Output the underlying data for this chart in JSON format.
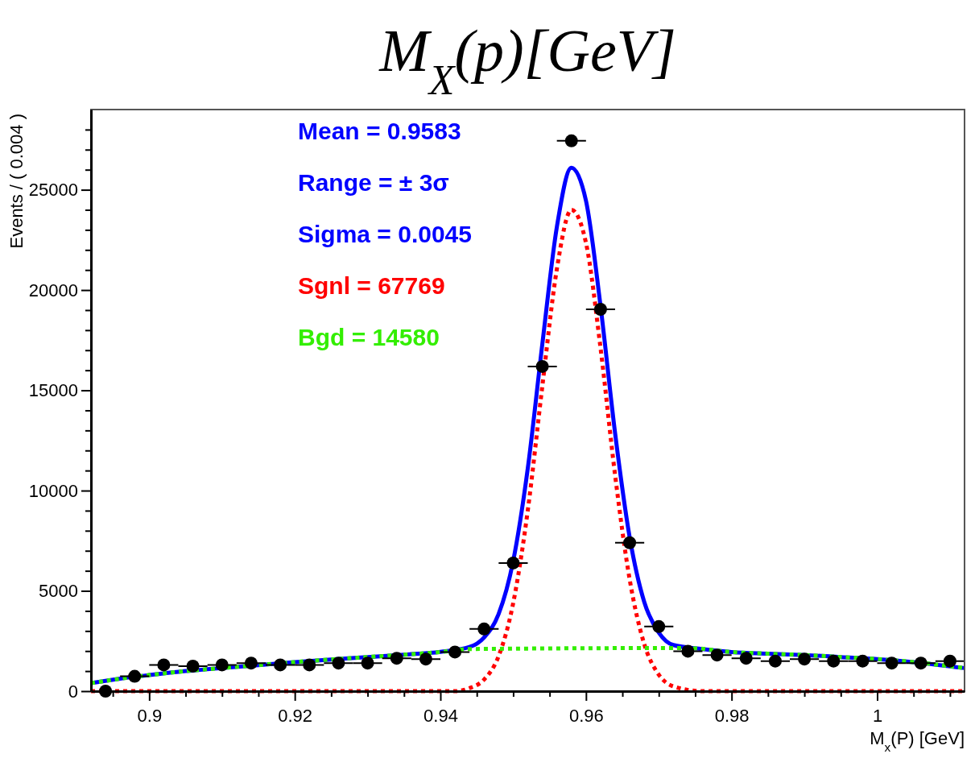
{
  "chart_data": {
    "type": "scatter",
    "title": "M$_{X}$(p)[GeV]",
    "xlabel": "M$_{x}$(P) [GeV]",
    "ylabel": "Events / ( 0.004 )",
    "xlim": [
      0.892,
      1.012
    ],
    "ylim": [
      0,
      29000
    ],
    "xticks": [
      {
        "value": 0.895,
        "label": null
      },
      0.9,
      {
        "value": 0.905,
        "label": null
      },
      {
        "value": 0.91,
        "label": null
      },
      {
        "value": 0.915,
        "label": null
      },
      0.92,
      {
        "value": 0.925,
        "label": null
      },
      {
        "value": 0.93,
        "label": null
      },
      {
        "value": 0.935,
        "label": null
      },
      0.94,
      {
        "value": 0.945,
        "label": null
      },
      {
        "value": 0.95,
        "label": null
      },
      {
        "value": 0.955,
        "label": null
      },
      0.96,
      {
        "value": 0.965,
        "label": null
      },
      {
        "value": 0.97,
        "label": null
      },
      {
        "value": 0.975,
        "label": null
      },
      0.98,
      {
        "value": 0.985,
        "label": null
      },
      {
        "value": 0.99,
        "label": null
      },
      {
        "value": 0.995,
        "label": null
      },
      1,
      {
        "value": 1.005,
        "label": null
      },
      {
        "value": 1.01,
        "label": null
      }
    ],
    "yticks": [
      0,
      {
        "value": 1000,
        "label": null
      },
      {
        "value": 2000,
        "label": null
      },
      {
        "value": 3000,
        "label": null
      },
      {
        "value": 4000,
        "label": null
      },
      5000,
      {
        "value": 6000,
        "label": null
      },
      {
        "value": 7000,
        "label": null
      },
      {
        "value": 8000,
        "label": null
      },
      {
        "value": 9000,
        "label": null
      },
      10000,
      {
        "value": 11000,
        "label": null
      },
      {
        "value": 12000,
        "label": null
      },
      {
        "value": 13000,
        "label": null
      },
      {
        "value": 14000,
        "label": null
      },
      15000,
      {
        "value": 16000,
        "label": null
      },
      {
        "value": 17000,
        "label": null
      },
      {
        "value": 18000,
        "label": null
      },
      {
        "value": 19000,
        "label": null
      },
      20000,
      {
        "value": 21000,
        "label": null
      },
      {
        "value": 22000,
        "label": null
      },
      {
        "value": 23000,
        "label": null
      },
      {
        "value": 24000,
        "label": null
      },
      25000,
      {
        "value": 26000,
        "label": null
      },
      {
        "value": 27000,
        "label": null
      },
      {
        "value": 28000,
        "label": null
      }
    ],
    "grid": false,
    "legend": false,
    "annotations": [
      "Mean = 0.9583",
      "Range = ± 3σ",
      "Sigma = 0.0045",
      "Sgnl = 67769",
      "Bgd = 14580"
    ],
    "series": [
      {
        "color": "#000000",
        "marker": "circle",
        "x": [
          0.894,
          0.898,
          0.902,
          0.906,
          0.91,
          0.914,
          0.918,
          0.922,
          0.926,
          0.93,
          0.934,
          0.938,
          0.942,
          0.946,
          0.95,
          0.954,
          0.958,
          0.962,
          0.966,
          0.97,
          0.974,
          0.978,
          0.982,
          0.986,
          0.99,
          0.994,
          0.998,
          1.002,
          1.006,
          1.01
        ],
        "values": [
          0,
          740,
          1310,
          1250,
          1310,
          1400,
          1310,
          1310,
          1400,
          1400,
          1640,
          1600,
          1950,
          3100,
          6390,
          16190,
          27440,
          19040,
          7400,
          3220,
          1990,
          1800,
          1640,
          1500,
          1600,
          1500,
          1500,
          1400,
          1400,
          1500
        ],
        "xerrors": [
          0.002,
          0.002,
          0.002,
          0.002,
          0.002,
          0.002,
          0.002,
          0.002,
          0.002,
          0.002,
          0.002,
          0.002,
          0.002,
          0.002,
          0.002,
          0.002,
          0.002,
          0.002,
          0.002,
          0.002,
          0.002,
          0.002,
          0.002,
          0.002,
          0.002,
          0.002,
          0.002,
          0.002,
          0.002,
          0.002
        ]
      },
      {
        "type": "line",
        "color": "#0000ff",
        "line_style": "solid",
        "x": [
          0.892,
          0.896,
          0.9,
          0.905,
          0.91,
          0.915,
          0.92,
          0.925,
          0.93,
          0.935,
          0.94,
          0.944,
          0.946,
          0.948,
          0.95,
          0.952,
          0.954,
          0.956,
          0.958,
          0.96,
          0.962,
          0.964,
          0.966,
          0.968,
          0.97,
          0.972,
          0.976,
          0.98,
          0.985,
          0.99,
          0.995,
          1.0,
          1.005,
          1.012
        ],
        "values": [
          400,
          620,
          800,
          1000,
          1150,
          1300,
          1450,
          1580,
          1700,
          1820,
          1960,
          2200,
          2680,
          3850,
          6490,
          11100,
          17300,
          23150,
          26100,
          24450,
          19200,
          12860,
          7670,
          4450,
          2920,
          2300,
          2100,
          1950,
          1870,
          1800,
          1700,
          1600,
          1450,
          1150
        ]
      },
      {
        "type": "line",
        "color": "#ff0000",
        "line_style": "dotted",
        "x": [
          0.892,
          0.938,
          0.942,
          0.944,
          0.946,
          0.948,
          0.95,
          0.952,
          0.954,
          0.956,
          0.958,
          0.96,
          0.962,
          0.964,
          0.966,
          0.968,
          0.97,
          0.972,
          0.976,
          0.98,
          1.012
        ],
        "values": [
          0,
          0,
          0,
          150,
          580,
          1750,
          4390,
          9000,
          15200,
          21050,
          24000,
          22350,
          17100,
          10760,
          5570,
          2350,
          820,
          240,
          0,
          0,
          0
        ]
      },
      {
        "type": "line",
        "color": "#33ee00",
        "line_style": "dotted",
        "x": [
          0.892,
          0.896,
          0.9,
          0.905,
          0.91,
          0.915,
          0.92,
          0.925,
          0.93,
          0.935,
          0.94,
          0.944,
          0.974,
          0.98,
          0.985,
          0.99,
          0.995,
          1.0,
          1.005,
          1.012
        ],
        "values": [
          400,
          620,
          800,
          1000,
          1150,
          1300,
          1450,
          1580,
          1700,
          1820,
          1950,
          2100,
          2150,
          1950,
          1870,
          1800,
          1700,
          1600,
          1450,
          1150
        ]
      }
    ]
  }
}
